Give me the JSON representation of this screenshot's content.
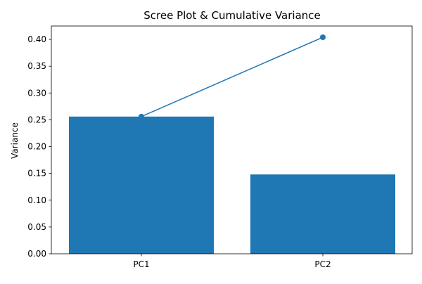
{
  "chart_data": {
    "type": "bar",
    "title": "Scree Plot & Cumulative Variance",
    "xlabel": "",
    "ylabel": "Variance",
    "categories": [
      "PC1",
      "PC2"
    ],
    "series": [
      {
        "kind": "bar",
        "values": [
          0.256,
          0.148
        ],
        "color": "#1f77b4"
      },
      {
        "kind": "line",
        "values": [
          0.256,
          0.404
        ],
        "color": "#1f77b4",
        "marker": "circle"
      }
    ],
    "ylim": [
      0,
      0.425
    ],
    "yticks": [
      0.0,
      0.05,
      0.1,
      0.15,
      0.2,
      0.25,
      0.3,
      0.35,
      0.4
    ],
    "ytick_labels": [
      "0.00",
      "0.05",
      "0.10",
      "0.15",
      "0.20",
      "0.25",
      "0.30",
      "0.35",
      "0.40"
    ],
    "grid": false,
    "legend": "none"
  }
}
